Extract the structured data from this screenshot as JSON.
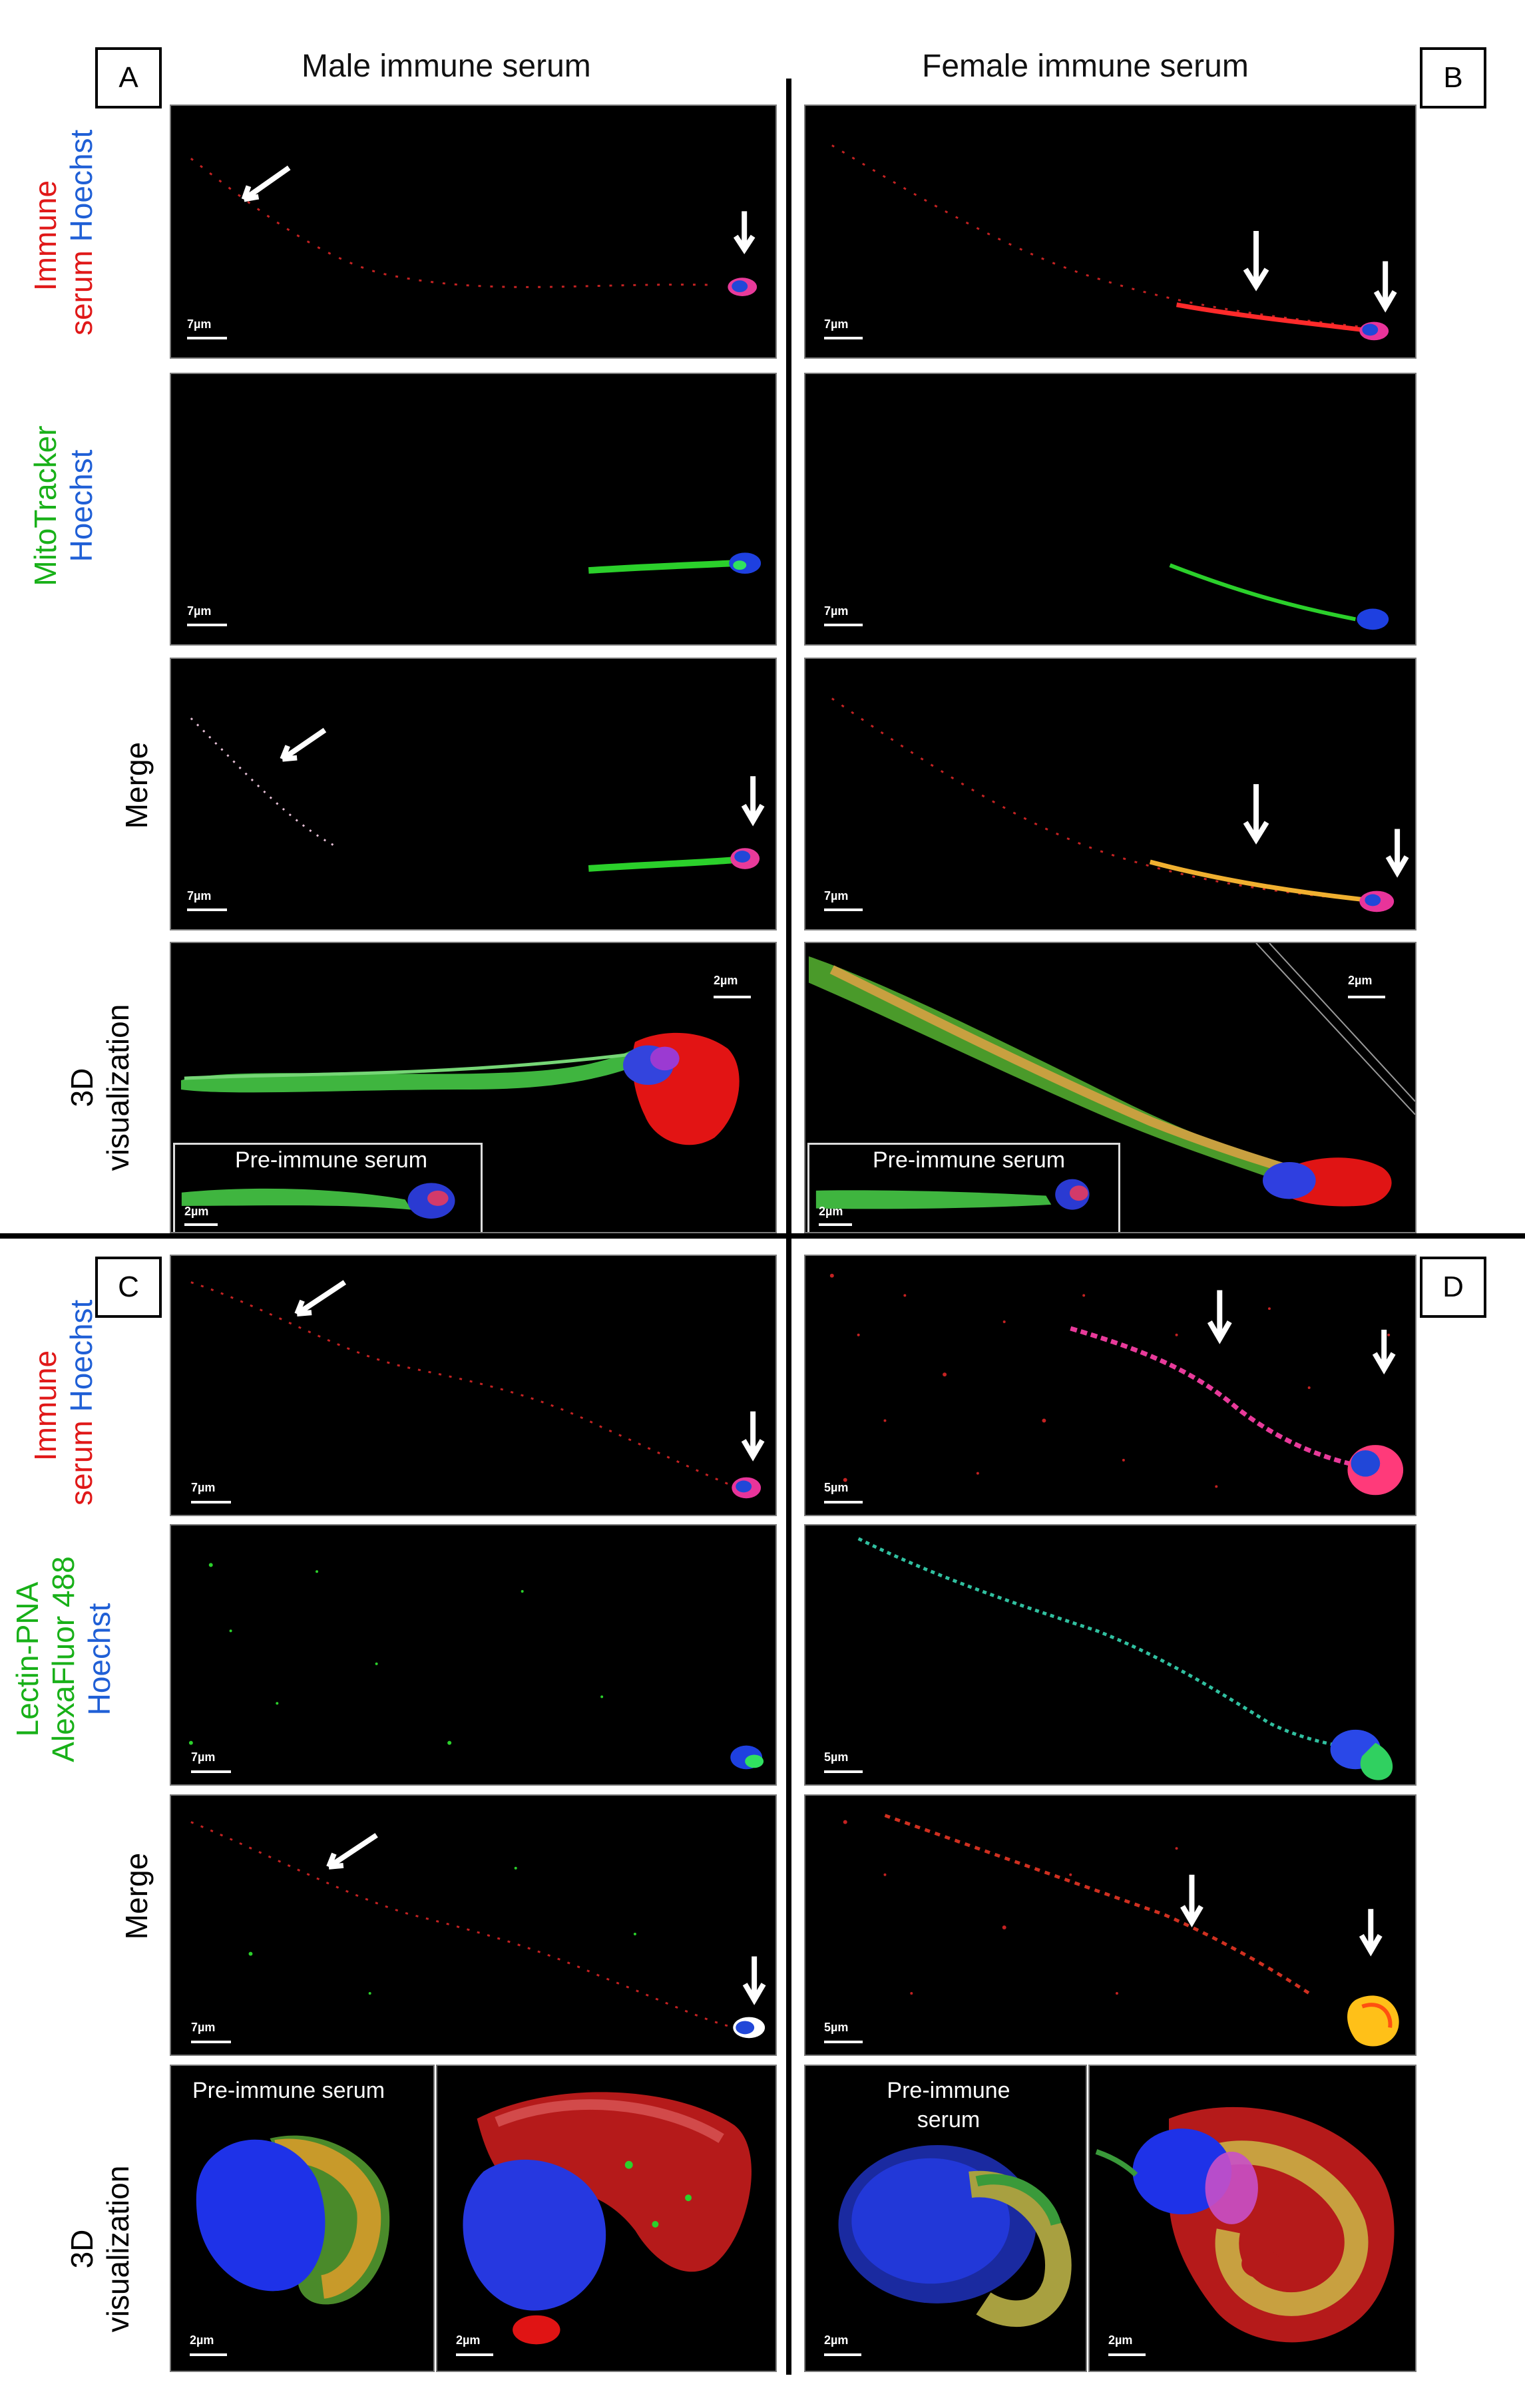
{
  "columns": {
    "male_title": "Male immune serum",
    "female_title": "Female immune serum"
  },
  "panel_letters": {
    "a": "A",
    "b": "B",
    "c": "C",
    "d": "D"
  },
  "row_labels": {
    "immune": "Immune",
    "serum": "serum",
    "hoechst": "Hoechst",
    "mitotracker": "MitoTracker",
    "merge": "Merge",
    "d3": "3D",
    "visualization": "visualization",
    "lectin": "Lectin-PNA",
    "alexa": "AlexaFluor 488"
  },
  "label_colors": {
    "red": "#e01818",
    "blue": "#1f5fd6",
    "green": "#18b018",
    "black": "#000000"
  },
  "scale_bars": {
    "s7": "7µm",
    "s5": "5µm",
    "s2": "2µm"
  },
  "inset_label": "Pre-immune serum",
  "pre_immune_split": {
    "line1": "Pre-immune",
    "line2": "serum"
  }
}
